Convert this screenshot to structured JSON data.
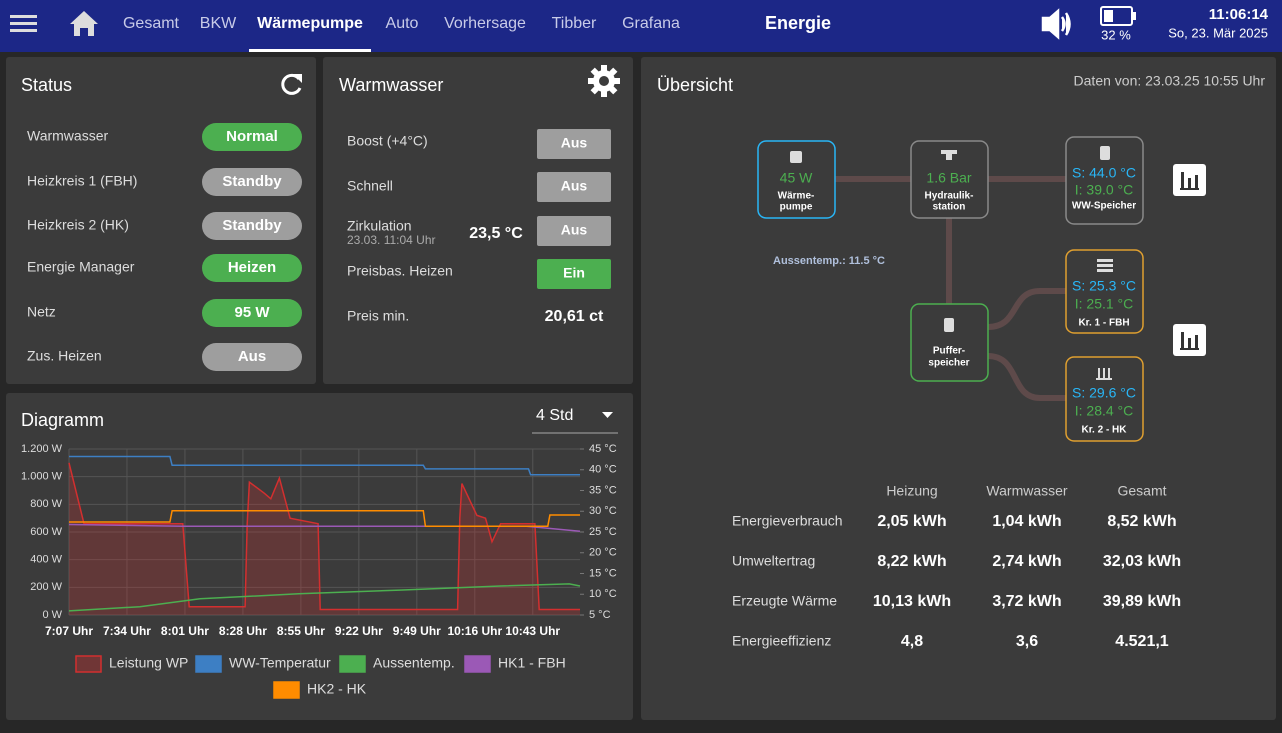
{
  "nav": {
    "items": [
      "Gesamt",
      "BKW",
      "Wärmepumpe",
      "Auto",
      "Vorhersage",
      "Tibber",
      "Grafana"
    ],
    "active": 2,
    "title": "Energie",
    "battery": "32 %",
    "time": "11:06:14",
    "date": "So, 23. Mär 2025"
  },
  "status": {
    "title": "Status",
    "rows": [
      {
        "label": "Warmwasser",
        "state": "Normal",
        "color": "#4caf50"
      },
      {
        "label": "Heizkreis 1 (FBH)",
        "state": "Standby",
        "color": "#9e9e9e"
      },
      {
        "label": "Heizkreis 2 (HK)",
        "state": "Standby",
        "color": "#9e9e9e"
      },
      {
        "label": "Energie Manager",
        "state": "Heizen",
        "color": "#4caf50"
      },
      {
        "label": "Netz",
        "state": "95 W",
        "color": "#4caf50"
      },
      {
        "label": "Zus. Heizen",
        "state": "Aus",
        "color": "#9e9e9e"
      }
    ]
  },
  "warmwasser": {
    "title": "Warmwasser",
    "rows": [
      {
        "label": "Boost (+4°C)",
        "button": "Aus",
        "color": "#9e9e9e"
      },
      {
        "label": "Schnell",
        "button": "Aus",
        "color": "#9e9e9e"
      },
      {
        "label": "Zirkulation",
        "sub": "23.03. 11:04 Uhr",
        "value": "23,5 °C",
        "button": "Aus",
        "color": "#9e9e9e"
      },
      {
        "label": "Preisbas. Heizen",
        "button": "Ein",
        "color": "#4caf50"
      },
      {
        "label": "Preis min.",
        "value": "20,61 ct"
      }
    ]
  },
  "chart_data": {
    "type": "line",
    "title": "Diagramm",
    "range_select": "4 Std",
    "grid": true,
    "xlim": [
      427,
      665
    ],
    "xticks": [
      {
        "value": 427,
        "label": "7:07 Uhr"
      },
      {
        "value": 454,
        "label": "7:34 Uhr"
      },
      {
        "value": 481,
        "label": "8:01 Uhr"
      },
      {
        "value": 508,
        "label": "8:28 Uhr"
      },
      {
        "value": 535,
        "label": "8:55 Uhr"
      },
      {
        "value": 562,
        "label": "9:22 Uhr"
      },
      {
        "value": 589,
        "label": "9:49 Uhr"
      },
      {
        "value": 616,
        "label": "10:16 Uhr"
      },
      {
        "value": 643,
        "label": "10:43 Uhr"
      }
    ],
    "ylim": [
      0,
      1200
    ],
    "yticks": [
      {
        "value": 0,
        "label": "0 W"
      },
      {
        "value": 200,
        "label": "200 W"
      },
      {
        "value": 400,
        "label": "400 W"
      },
      {
        "value": 600,
        "label": "600 W"
      },
      {
        "value": 800,
        "label": "800 W"
      },
      {
        "value": 1000,
        "label": "1.000 W"
      },
      {
        "value": 1200,
        "label": "1.200 W"
      }
    ],
    "y2lim": [
      5,
      45
    ],
    "y2ticks": [
      {
        "value": 5,
        "label": "5 °C"
      },
      {
        "value": 10,
        "label": "10 °C"
      },
      {
        "value": 15,
        "label": "15 °C"
      },
      {
        "value": 20,
        "label": "20 °C"
      },
      {
        "value": 25,
        "label": "25 °C"
      },
      {
        "value": 30,
        "label": "30 °C"
      },
      {
        "value": 35,
        "label": "35 °C"
      },
      {
        "value": 40,
        "label": "40 °C"
      },
      {
        "value": 45,
        "label": "45 °C"
      }
    ],
    "series": [
      {
        "name": "Leistung WP",
        "color": "#d32f2f",
        "area": true,
        "x": [
          427,
          434,
          480,
          483,
          509,
          510,
          511,
          518,
          521,
          525,
          530,
          543,
          544,
          608,
          609,
          610,
          617,
          621,
          624,
          628,
          644,
          646,
          665
        ],
        "values": [
          1100,
          660,
          660,
          60,
          60,
          660,
          960,
          880,
          840,
          990,
          700,
          660,
          40,
          40,
          700,
          950,
          720,
          700,
          530,
          660,
          660,
          40,
          40
        ]
      },
      {
        "name": "WW-Temperatur",
        "color": "#3d7fc4",
        "axis": "y2",
        "x": [
          427,
          474,
          475,
          592,
          593,
          641,
          642,
          665
        ],
        "values": [
          43.2,
          43.2,
          41.1,
          41.1,
          40.2,
          40.2,
          38.8,
          38.8
        ]
      },
      {
        "name": "Aussentemp.",
        "color": "#4caf50",
        "axis": "y2",
        "x": [
          427,
          460,
          488,
          534,
          581,
          628,
          660,
          665
        ],
        "values": [
          6.0,
          7.0,
          8.9,
          10.1,
          11.0,
          12.0,
          12.5,
          12.0
        ]
      },
      {
        "name": "HK1 - FBH",
        "color": "#9b59b6",
        "axis": "y2",
        "x": [
          427,
          480,
          640,
          665
        ],
        "values": [
          26.8,
          26.4,
          26.4,
          25.2
        ]
      },
      {
        "name": "HK2 - HK",
        "color": "#ff8c00",
        "axis": "y2",
        "x": [
          427,
          474,
          475,
          592,
          593,
          650,
          651,
          665
        ],
        "values": [
          27.4,
          27.4,
          30.1,
          30.1,
          26.4,
          26.4,
          29.1,
          29.1
        ]
      }
    ]
  },
  "uebersicht": {
    "title": "Übersicht",
    "timestamp": "Daten von: 23.03.25 10:55 Uhr",
    "nodes": [
      {
        "lines": [
          "45 W",
          "Wärme-",
          "pumpe"
        ]
      },
      {
        "lines": [
          "1.6 Bar",
          "Hydraulik-",
          "station"
        ]
      },
      {
        "lines": [
          "S: 44.0 °C",
          "I: 39.0 °C",
          "WW-Speicher"
        ]
      },
      {
        "lines": [
          "S: 25.3 °C",
          "I: 25.1 °C",
          "Kr. 1 - FBH"
        ]
      },
      {
        "lines": [
          "S: 29.6 °C",
          "I: 28.4 °C",
          "Kr. 2 - HK"
        ]
      },
      {
        "lines": [
          "Puffer-",
          "speicher"
        ]
      }
    ],
    "aussentemp": "Aussentemp.: 11.5 °C",
    "table": {
      "headers": [
        "Heizung",
        "Warmwasser",
        "Gesamt"
      ],
      "rows": [
        [
          "Energieverbrauch",
          "2,05 kWh",
          "1,04 kWh",
          "8,52 kWh"
        ],
        [
          "Umweltertrag",
          "8,22 kWh",
          "2,74 kWh",
          "32,03 kWh"
        ],
        [
          "Erzeugte Wärme",
          "10,13 kWh",
          "3,72 kWh",
          "39,89 kWh"
        ],
        [
          "Energieeffizienz",
          "4,8",
          "3,6",
          "4.521,1"
        ]
      ]
    }
  }
}
